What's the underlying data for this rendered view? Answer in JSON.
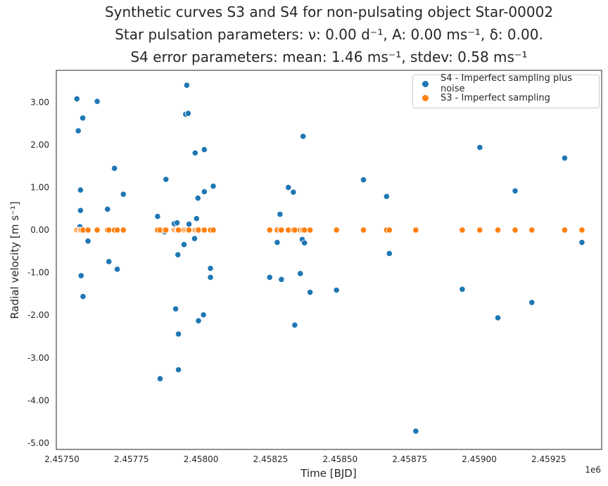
{
  "chart_data": {
    "type": "scatter",
    "title_lines": [
      "Synthetic curves S3 and S4 for non-pulsating object Star-00002",
      "Star pulsation parameters: ν: 0.00 d⁻¹, A: 0.00 ms⁻¹, δ: 0.00.",
      "S4 error parameters: mean: 1.46 ms⁻¹, stdev: 0.58 ms⁻¹"
    ],
    "xlabel": "Time [BJD]",
    "ylabel": "Radial velocity [m s⁻¹]",
    "x_offset_label": "1e6",
    "xlim": [
      2.45748,
      2.45944
    ],
    "ylim": [
      -5.15,
      3.75
    ],
    "x_ticks": [
      2.4575,
      2.45775,
      2.458,
      2.45825,
      2.4585,
      2.45875,
      2.459,
      2.45925
    ],
    "x_tick_labels": [
      "2.45750",
      "2.45775",
      "2.45800",
      "2.45825",
      "2.45850",
      "2.45875",
      "2.45900",
      "2.45925"
    ],
    "y_ticks": [
      -5,
      -4,
      -3,
      -2,
      -1,
      0,
      1,
      2,
      3
    ],
    "y_tick_labels": [
      "-5.00",
      "-4.00",
      "-3.00",
      "-2.00",
      "-1.00",
      "0.00",
      "1.00",
      "2.00",
      "3.00"
    ],
    "grid": false,
    "legend_position": "top-right",
    "series": [
      {
        "name": "S4 - Imperfect sampling plus noise",
        "color": "#1f77b4",
        "points": [
          [
            2.457554,
            3.08
          ],
          [
            2.457559,
            2.33
          ],
          [
            2.457565,
            0.08
          ],
          [
            2.457567,
            0.94
          ],
          [
            2.457567,
            0.46
          ],
          [
            2.457569,
            -1.07
          ],
          [
            2.457575,
            2.63
          ],
          [
            2.457576,
            -1.56
          ],
          [
            2.457594,
            -0.26
          ],
          [
            2.457627,
            3.02
          ],
          [
            2.457664,
            0.49
          ],
          [
            2.457669,
            -0.74
          ],
          [
            2.457689,
            1.45
          ],
          [
            2.457699,
            -0.92
          ],
          [
            2.457721,
            0.84
          ],
          [
            2.457844,
            0.32
          ],
          [
            2.457853,
            -3.49
          ],
          [
            2.457869,
            -0.04
          ],
          [
            2.457874,
            1.19
          ],
          [
            2.457904,
            0.15
          ],
          [
            2.457909,
            -1.85
          ],
          [
            2.457914,
            0.17
          ],
          [
            2.457917,
            -0.58
          ],
          [
            2.457919,
            -2.44
          ],
          [
            2.457919,
            -3.28
          ],
          [
            2.457939,
            -0.34
          ],
          [
            2.457945,
            2.72
          ],
          [
            2.457949,
            3.4
          ],
          [
            2.457954,
            2.74
          ],
          [
            2.457957,
            0.14
          ],
          [
            2.457977,
            -0.2
          ],
          [
            2.457979,
            1.81
          ],
          [
            2.457984,
            0.27
          ],
          [
            2.457989,
            0.75
          ],
          [
            2.457991,
            -2.13
          ],
          [
            2.458009,
            -1.99
          ],
          [
            2.458012,
            1.89
          ],
          [
            2.458012,
            0.9
          ],
          [
            2.458034,
            -0.9
          ],
          [
            2.458034,
            -1.11
          ],
          [
            2.458044,
            1.03
          ],
          [
            2.458247,
            -1.11
          ],
          [
            2.458274,
            -0.29
          ],
          [
            2.458284,
            0.37
          ],
          [
            2.458289,
            -1.16
          ],
          [
            2.458314,
            1.0
          ],
          [
            2.458332,
            0.89
          ],
          [
            2.458337,
            -2.23
          ],
          [
            2.458357,
            -1.02
          ],
          [
            2.458364,
            -0.22
          ],
          [
            2.458367,
            2.2
          ],
          [
            2.458372,
            -0.3
          ],
          [
            2.458392,
            -1.46
          ],
          [
            2.458487,
            -1.41
          ],
          [
            2.458584,
            1.18
          ],
          [
            2.458667,
            0.79
          ],
          [
            2.458677,
            -0.55
          ],
          [
            2.458772,
            -4.72
          ],
          [
            2.458939,
            -1.39
          ],
          [
            2.459002,
            1.94
          ],
          [
            2.459067,
            -2.06
          ],
          [
            2.459129,
            0.92
          ],
          [
            2.459189,
            -1.7
          ],
          [
            2.459307,
            1.69
          ],
          [
            2.459369,
            -0.29
          ]
        ]
      },
      {
        "name": "S3 - Imperfect sampling",
        "color": "#ff7f0e",
        "points": [
          [
            2.457554,
            0
          ],
          [
            2.457559,
            0
          ],
          [
            2.457565,
            0
          ],
          [
            2.457567,
            0
          ],
          [
            2.457569,
            0
          ],
          [
            2.457575,
            0
          ],
          [
            2.457576,
            0
          ],
          [
            2.457594,
            0
          ],
          [
            2.457627,
            0
          ],
          [
            2.457664,
            0
          ],
          [
            2.457669,
            0
          ],
          [
            2.457689,
            0
          ],
          [
            2.457699,
            0
          ],
          [
            2.457721,
            0
          ],
          [
            2.457844,
            0
          ],
          [
            2.457853,
            0
          ],
          [
            2.457869,
            0
          ],
          [
            2.457874,
            0
          ],
          [
            2.457904,
            0
          ],
          [
            2.457909,
            0
          ],
          [
            2.457914,
            0
          ],
          [
            2.457917,
            0
          ],
          [
            2.457919,
            0
          ],
          [
            2.457939,
            0
          ],
          [
            2.457945,
            0
          ],
          [
            2.457949,
            0
          ],
          [
            2.457954,
            0
          ],
          [
            2.457957,
            0
          ],
          [
            2.457977,
            0
          ],
          [
            2.457979,
            0
          ],
          [
            2.457984,
            0
          ],
          [
            2.457989,
            0
          ],
          [
            2.457991,
            0
          ],
          [
            2.458009,
            0
          ],
          [
            2.458012,
            0
          ],
          [
            2.458034,
            0
          ],
          [
            2.458044,
            0
          ],
          [
            2.458247,
            0
          ],
          [
            2.458274,
            0
          ],
          [
            2.458284,
            0
          ],
          [
            2.458289,
            0
          ],
          [
            2.458314,
            0
          ],
          [
            2.458332,
            0
          ],
          [
            2.458337,
            0
          ],
          [
            2.458357,
            0
          ],
          [
            2.458364,
            0
          ],
          [
            2.458367,
            0
          ],
          [
            2.458372,
            0
          ],
          [
            2.458392,
            0
          ],
          [
            2.458487,
            0
          ],
          [
            2.458584,
            0
          ],
          [
            2.458667,
            0
          ],
          [
            2.458677,
            0
          ],
          [
            2.458772,
            0
          ],
          [
            2.458939,
            0
          ],
          [
            2.459002,
            0
          ],
          [
            2.459067,
            0
          ],
          [
            2.459129,
            0
          ],
          [
            2.459189,
            0
          ],
          [
            2.459307,
            0
          ],
          [
            2.459369,
            0
          ]
        ]
      }
    ]
  }
}
